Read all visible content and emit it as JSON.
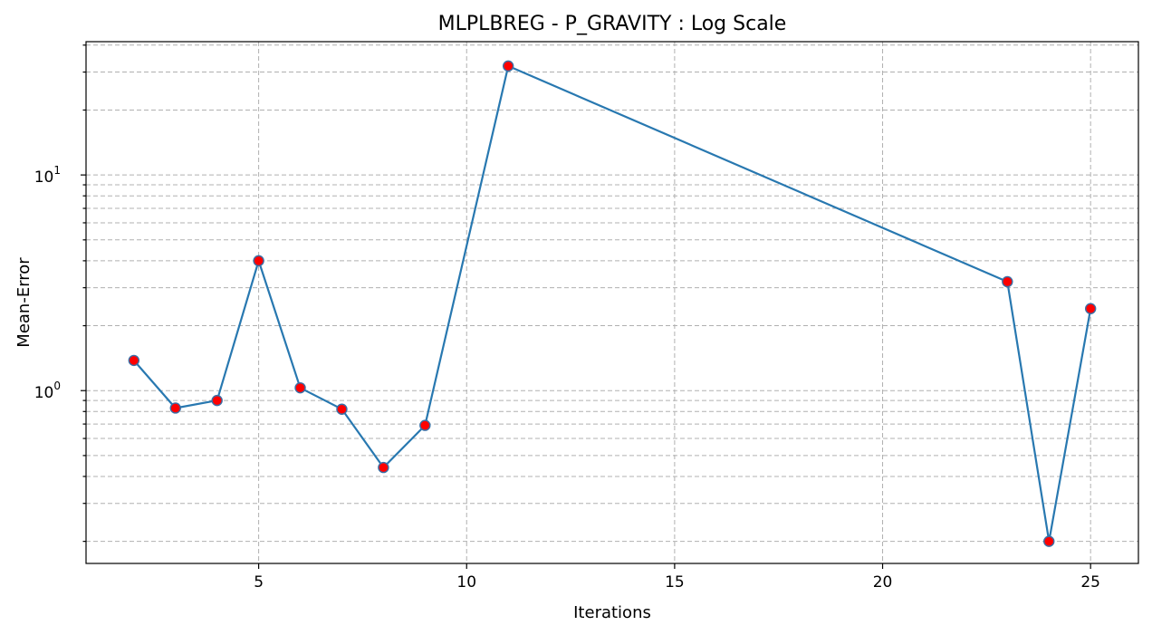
{
  "chart_data": {
    "type": "line",
    "title": "MLPLBREG - P_GRAVITY : Log Scale",
    "xlabel": "Iterations",
    "ylabel": "Mean-Error",
    "yscale": "log",
    "xlim": [
      0.85,
      26.15
    ],
    "ylim": [
      0.158,
      41.5
    ],
    "xticks": [
      5,
      10,
      15,
      20,
      25
    ],
    "yticks_major": [
      {
        "value": 1,
        "base": "10",
        "exp": "0"
      },
      {
        "value": 10,
        "base": "10",
        "exp": "1"
      }
    ],
    "grid": true,
    "colors": {
      "line": "#2878b0",
      "marker_face": "#ff0000",
      "marker_edge": "#3a6ea5",
      "grid": "#b0b0b0"
    },
    "series": [
      {
        "x": [
          2,
          3,
          4,
          5,
          6,
          7,
          8,
          9,
          11,
          23,
          24,
          25
        ],
        "y": [
          1.38,
          0.83,
          0.9,
          4.0,
          1.03,
          0.82,
          0.44,
          0.69,
          32.0,
          3.2,
          0.2,
          2.4
        ]
      }
    ]
  }
}
